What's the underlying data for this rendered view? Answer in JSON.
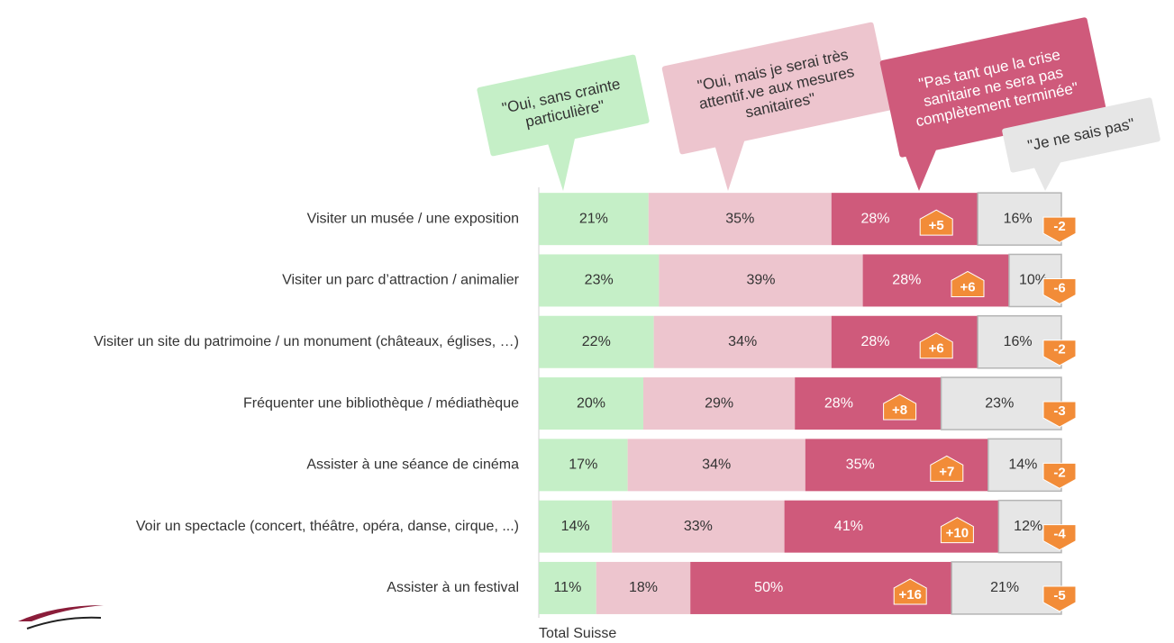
{
  "chart_data": {
    "type": "stacked-bar-horizontal",
    "categories": [
      "Visiter un musée / une exposition",
      "Visiter un parc d’attraction / animalier",
      "Visiter un site du patrimoine / un monument (châteaux, églises, …)",
      "Fréquenter une bibliothèque / médiathèque",
      "Assister à une séance de cinéma",
      "Voir un spectacle (concert, théâtre, opéra, danse, cirque, ...)",
      "Assister à un festival"
    ],
    "series": [
      {
        "name": "\"Oui, sans crainte particulière\"",
        "color": "#c5efc7",
        "text_color": "#333333",
        "values": [
          21,
          23,
          22,
          20,
          17,
          14,
          11
        ],
        "value_labels": [
          "21%",
          "23%",
          "22%",
          "20%",
          "17%",
          "14%",
          "11%"
        ]
      },
      {
        "name": "\"Oui, mais je serai très attentif.ve aux mesures sanitaires\"",
        "color": "#edc5ce",
        "text_color": "#333333",
        "values": [
          35,
          39,
          34,
          29,
          34,
          33,
          18
        ],
        "value_labels": [
          "35%",
          "39%",
          "34%",
          "29%",
          "34%",
          "33%",
          "18%"
        ]
      },
      {
        "name": "\"Pas tant que la crise sanitaire ne sera pas complètement terminée\"",
        "color": "#cf5a7b",
        "text_color": "#ffffff",
        "values": [
          28,
          28,
          28,
          28,
          35,
          41,
          50
        ],
        "value_labels": [
          "28%",
          "28%",
          "28%",
          "28%",
          "35%",
          "41%",
          "50%"
        ],
        "changes": [
          5,
          6,
          6,
          8,
          7,
          10,
          16
        ],
        "change_labels": [
          "+5",
          "+6",
          "+6",
          "+8",
          "+7",
          "+10",
          "+16"
        ]
      },
      {
        "name": "\"Je ne sais pas\"",
        "color": "#e6e6e6",
        "text_color": "#333333",
        "values": [
          16,
          10,
          16,
          23,
          14,
          12,
          21
        ],
        "value_labels": [
          "16%",
          "10%",
          "16%",
          "23%",
          "14%",
          "12%",
          "21%"
        ],
        "changes": [
          -2,
          -6,
          -2,
          -3,
          -2,
          -4,
          -5
        ]
      }
    ],
    "xlabel": "Total Suisse",
    "xlim": [
      0,
      100
    ],
    "badge_color": "#f28c38"
  }
}
